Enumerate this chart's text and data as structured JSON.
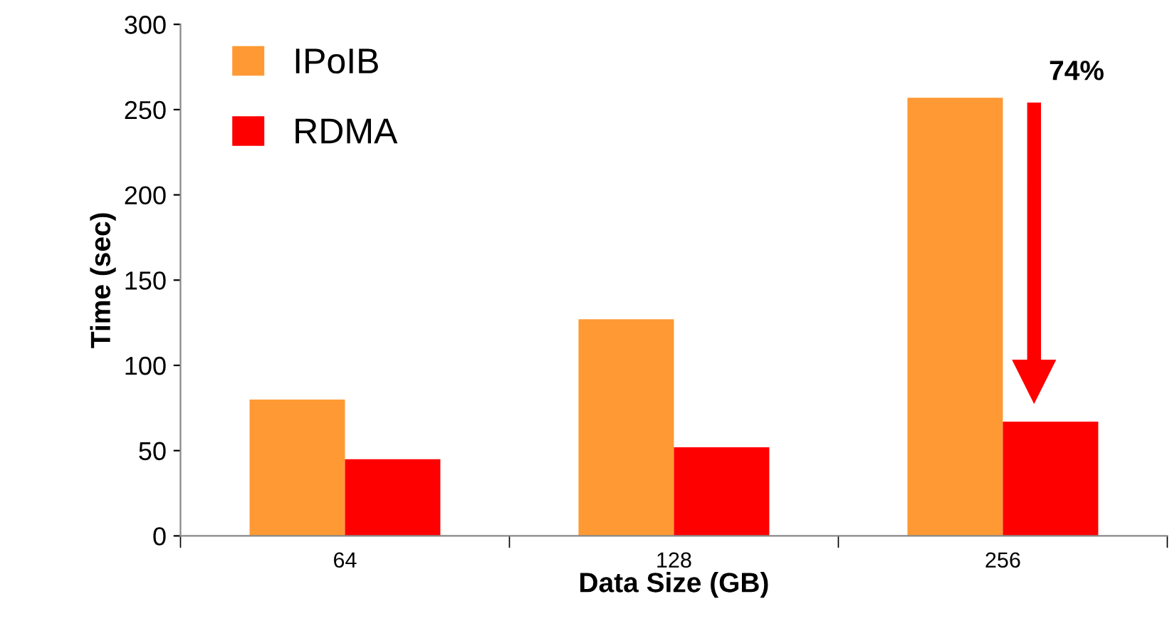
{
  "chart_data": {
    "type": "bar",
    "xlabel": "Data Size (GB)",
    "ylabel": "Time (sec)",
    "categories": [
      "64",
      "128",
      "256"
    ],
    "series": [
      {
        "name": "IPoIB",
        "color": "#ff9933",
        "values": [
          80,
          127,
          257
        ]
      },
      {
        "name": "RDMA",
        "color": "#ff0000",
        "values": [
          45,
          52,
          67
        ]
      }
    ],
    "ylim": [
      0,
      300
    ],
    "yticks": [
      0,
      50,
      100,
      150,
      200,
      250,
      300
    ],
    "grid": false,
    "legend": "top left",
    "annotations": [
      "74%"
    ]
  }
}
